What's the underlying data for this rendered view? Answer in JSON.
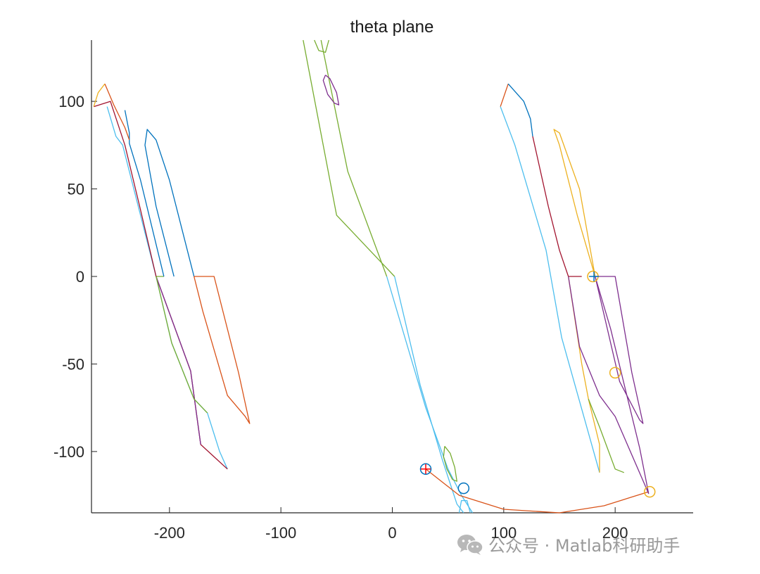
{
  "chart_data": {
    "type": "line",
    "title": "theta plane",
    "xlabel": "",
    "ylabel": "",
    "xlim": [
      -270,
      270
    ],
    "ylim": [
      -135,
      135
    ],
    "xticks": [
      -200,
      -100,
      0,
      100,
      200
    ],
    "yticks": [
      -100,
      -50,
      0,
      50,
      100
    ],
    "grid": false,
    "legend": "none",
    "series": [
      {
        "color": "#4DBEEE",
        "points": [
          [
            -148,
            -110
          ],
          [
            -155,
            -100
          ],
          [
            -160,
            -90
          ],
          [
            -166,
            -78
          ],
          [
            -178,
            -70
          ],
          [
            -198,
            -38
          ],
          [
            -212,
            0
          ],
          [
            -242,
            75
          ],
          [
            -248,
            80
          ],
          [
            -256,
            97
          ]
        ]
      },
      {
        "color": "#A2142F",
        "points": [
          [
            -148,
            -110
          ],
          [
            -160,
            -103
          ],
          [
            -172,
            -96
          ],
          [
            -181,
            -54
          ],
          [
            -212,
            0
          ]
        ]
      },
      {
        "color": "#7E2F8E",
        "points": [
          [
            -172,
            -96
          ],
          [
            -181,
            -54
          ],
          [
            -212,
            0
          ]
        ]
      },
      {
        "color": "#77AC30",
        "points": [
          [
            -166,
            -78
          ],
          [
            -178,
            -70
          ],
          [
            -198,
            -38
          ],
          [
            -212,
            0
          ],
          [
            -205,
            0
          ]
        ]
      },
      {
        "color": "#A2142F",
        "points": [
          [
            -212,
            0
          ],
          [
            -226,
            38
          ],
          [
            -240,
            75
          ],
          [
            -253,
            100
          ],
          [
            -268,
            97
          ]
        ]
      },
      {
        "color": "#0072BD",
        "points": [
          [
            -205,
            0
          ],
          [
            -226,
            55
          ],
          [
            -236,
            76
          ],
          [
            -236,
            82
          ],
          [
            -240,
            95
          ]
        ]
      },
      {
        "color": "#EDB120",
        "points": [
          [
            -268,
            97
          ],
          [
            -264,
            105
          ],
          [
            -258,
            110
          ]
        ]
      },
      {
        "color": "#D95319",
        "points": [
          [
            -258,
            110
          ],
          [
            -250,
            98
          ],
          [
            -240,
            85
          ],
          [
            -236,
            78
          ]
        ]
      },
      {
        "color": "#0072BD",
        "points": [
          [
            -178,
            0
          ],
          [
            -200,
            55
          ],
          [
            -212,
            78
          ],
          [
            -220,
            84
          ],
          [
            -222,
            75
          ],
          [
            -212,
            40
          ],
          [
            -196,
            0
          ]
        ]
      },
      {
        "color": "#D95319",
        "points": [
          [
            -178,
            0
          ],
          [
            -160,
            0
          ],
          [
            -138,
            -55
          ],
          [
            -128,
            -84
          ],
          [
            -132,
            -80
          ],
          [
            -148,
            -68
          ],
          [
            -170,
            -20
          ],
          [
            -178,
            0
          ]
        ]
      },
      {
        "color": "#77AC30",
        "points": [
          [
            -80,
            135
          ],
          [
            -50,
            35
          ],
          [
            2,
            0
          ]
        ]
      },
      {
        "color": "#77AC30",
        "points": [
          [
            -64,
            135
          ],
          [
            -40,
            60
          ],
          [
            -5,
            0
          ]
        ]
      },
      {
        "color": "#4DBEEE",
        "points": [
          [
            -5,
            0
          ],
          [
            30,
            -75
          ],
          [
            50,
            -110
          ],
          [
            62,
            -125
          ],
          [
            72,
            -135
          ]
        ]
      },
      {
        "color": "#4DBEEE",
        "points": [
          [
            2,
            0
          ],
          [
            25,
            -62
          ],
          [
            45,
            -105
          ],
          [
            58,
            -130
          ],
          [
            64,
            -135
          ]
        ]
      },
      {
        "color": "#7E2F8E",
        "points": [
          [
            -60,
            115
          ],
          [
            -56,
            113
          ],
          [
            -50,
            105
          ],
          [
            -48,
            98
          ],
          [
            -52,
            99
          ],
          [
            -58,
            104
          ],
          [
            -62,
            112
          ],
          [
            -60,
            115
          ]
        ]
      },
      {
        "color": "#77AC30",
        "points": [
          [
            -70,
            135
          ],
          [
            -66,
            129
          ],
          [
            -60,
            128
          ],
          [
            -57,
            135
          ]
        ]
      },
      {
        "color": "#77AC30",
        "points": [
          [
            47,
            -97
          ],
          [
            52,
            -101
          ],
          [
            56,
            -109
          ],
          [
            58,
            -117
          ],
          [
            54,
            -116
          ],
          [
            49,
            -110
          ],
          [
            46,
            -103
          ],
          [
            47,
            -97
          ]
        ]
      },
      {
        "color": "#4DBEEE",
        "points": [
          [
            60,
            -135
          ],
          [
            62,
            -128
          ],
          [
            67,
            -128
          ],
          [
            70,
            -135
          ]
        ]
      },
      {
        "color": "#D95319",
        "points": [
          [
            30,
            -110
          ],
          [
            60,
            -125
          ],
          [
            100,
            -133
          ],
          [
            150,
            -135
          ],
          [
            190,
            -131
          ],
          [
            230,
            -123
          ]
        ]
      },
      {
        "color": "#D95319",
        "points": [
          [
            97,
            97
          ],
          [
            104,
            110
          ]
        ]
      },
      {
        "color": "#0072BD",
        "points": [
          [
            104,
            110
          ],
          [
            118,
            100
          ],
          [
            124,
            90
          ],
          [
            126,
            80
          ]
        ]
      },
      {
        "color": "#A2142F",
        "points": [
          [
            126,
            80
          ],
          [
            140,
            40
          ],
          [
            150,
            15
          ],
          [
            158,
            0
          ],
          [
            170,
            0
          ]
        ]
      },
      {
        "color": "#4DBEEE",
        "points": [
          [
            97,
            97
          ],
          [
            110,
            75
          ],
          [
            138,
            15
          ],
          [
            152,
            -35
          ],
          [
            186,
            -112
          ]
        ]
      },
      {
        "color": "#EDB120",
        "points": [
          [
            158,
            0
          ],
          [
            170,
            -50
          ],
          [
            176,
            -70
          ],
          [
            186,
            -96
          ],
          [
            186,
            -112
          ]
        ]
      },
      {
        "color": "#77AC30",
        "points": [
          [
            176,
            -70
          ],
          [
            186,
            -86
          ],
          [
            200,
            -110
          ],
          [
            208,
            -112
          ]
        ]
      },
      {
        "color": "#7E2F8E",
        "points": [
          [
            158,
            0
          ],
          [
            168,
            -40
          ],
          [
            186,
            -68
          ],
          [
            200,
            -80
          ],
          [
            230,
            -124
          ],
          [
            222,
            -98
          ],
          [
            196,
            -30
          ],
          [
            182,
            0
          ]
        ]
      },
      {
        "color": "#EDB120",
        "points": [
          [
            182,
            0
          ],
          [
            168,
            50
          ],
          [
            150,
            82
          ],
          [
            145,
            84
          ],
          [
            150,
            75
          ],
          [
            166,
            35
          ],
          [
            182,
            0
          ]
        ]
      },
      {
        "color": "#7E2F8E",
        "points": [
          [
            182,
            0
          ],
          [
            200,
            0
          ],
          [
            215,
            -55
          ],
          [
            225,
            -84
          ],
          [
            222,
            -82
          ],
          [
            204,
            -60
          ],
          [
            182,
            0
          ]
        ]
      }
    ],
    "markers": [
      {
        "label": "",
        "color": "#0072BD",
        "shape": "circle",
        "x": 30,
        "y": -110
      },
      {
        "label": "",
        "color": "#FF0000",
        "shape": "plus",
        "x": 30,
        "y": -110
      },
      {
        "label": "",
        "color": "#0072BD",
        "shape": "circle",
        "x": 64,
        "y": -121
      },
      {
        "label": "",
        "color": "#EDB120",
        "shape": "circle",
        "x": 231,
        "y": -123
      },
      {
        "label": "",
        "color": "#EDB120",
        "shape": "circle",
        "x": 200,
        "y": -55
      },
      {
        "label": "",
        "color": "#EDB120",
        "shape": "circle",
        "x": 180,
        "y": 0
      },
      {
        "label": "",
        "color": "#0072BD",
        "shape": "plus",
        "x": 181,
        "y": 0
      }
    ]
  },
  "watermark": {
    "icon": "wechat-icon",
    "text": "公众号 · Matlab科研助手"
  }
}
